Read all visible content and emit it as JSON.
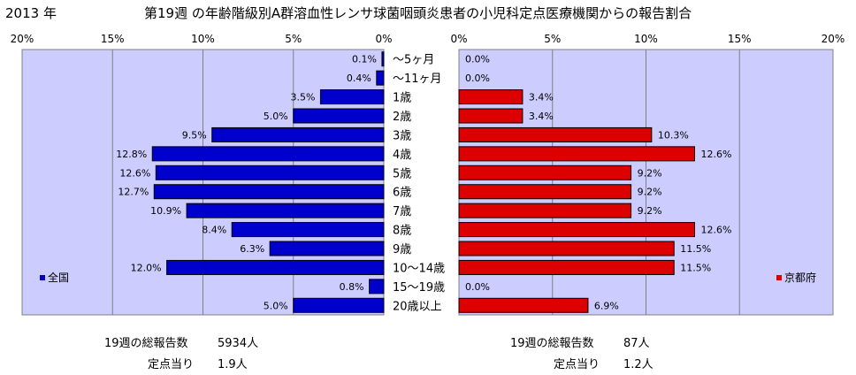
{
  "header": {
    "year": "2013 年",
    "title": "第19週 の年齢階級別A群溶血性レンサ球菌咽頭炎患者の小児科定点医療機関からの報告割合"
  },
  "chart_data": {
    "type": "bar",
    "orientation": "horizontal-butterfly",
    "categories": [
      "～5ヶ月",
      "～11ヶ月",
      "1歳",
      "2歳",
      "3歳",
      "4歳",
      "5歳",
      "6歳",
      "7歳",
      "8歳",
      "9歳",
      "10～14歳",
      "15～19歳",
      "20歳以上"
    ],
    "series": [
      {
        "name": "全国",
        "color": "#0000cc",
        "values": [
          0.1,
          0.4,
          3.5,
          5.0,
          9.5,
          12.8,
          12.6,
          12.7,
          10.9,
          8.4,
          6.3,
          12.0,
          0.8,
          5.0
        ],
        "labels": [
          "0.1%",
          "0.4%",
          "3.5%",
          "5.0%",
          "9.5%",
          "12.8%",
          "12.6%",
          "12.7%",
          "10.9%",
          "8.4%",
          "6.3%",
          "12.0%",
          "0.8%",
          "5.0%"
        ]
      },
      {
        "name": "京都府",
        "color": "#dd0000",
        "values": [
          0.0,
          0.0,
          3.4,
          3.4,
          10.3,
          12.6,
          9.2,
          9.2,
          9.2,
          12.6,
          11.5,
          11.5,
          0.0,
          6.9
        ],
        "labels": [
          "0.0%",
          "0.0%",
          "3.4%",
          "3.4%",
          "10.3%",
          "12.6%",
          "9.2%",
          "9.2%",
          "9.2%",
          "12.6%",
          "11.5%",
          "11.5%",
          "0.0%",
          "6.9%"
        ]
      }
    ],
    "xlim": [
      0,
      20
    ],
    "left_ticks": [
      "20%",
      "15%",
      "10%",
      "5%",
      "0%"
    ],
    "right_ticks": [
      "0%",
      "5%",
      "10%",
      "15%",
      "20%"
    ],
    "grid": true,
    "legend_left": "bottom-left",
    "legend_right": "bottom-right",
    "colors": {
      "plot_bg": "#ccccff",
      "bar_border": "#000000"
    }
  },
  "summary": {
    "national": {
      "total_label": "19週の総報告数",
      "total_value": "5934人",
      "per_label": "定点当り",
      "per_value": "1.9人"
    },
    "kyoto": {
      "total_label": "19週の総報告数",
      "total_value": "87人",
      "per_label": "定点当り",
      "per_value": "1.2人"
    }
  }
}
